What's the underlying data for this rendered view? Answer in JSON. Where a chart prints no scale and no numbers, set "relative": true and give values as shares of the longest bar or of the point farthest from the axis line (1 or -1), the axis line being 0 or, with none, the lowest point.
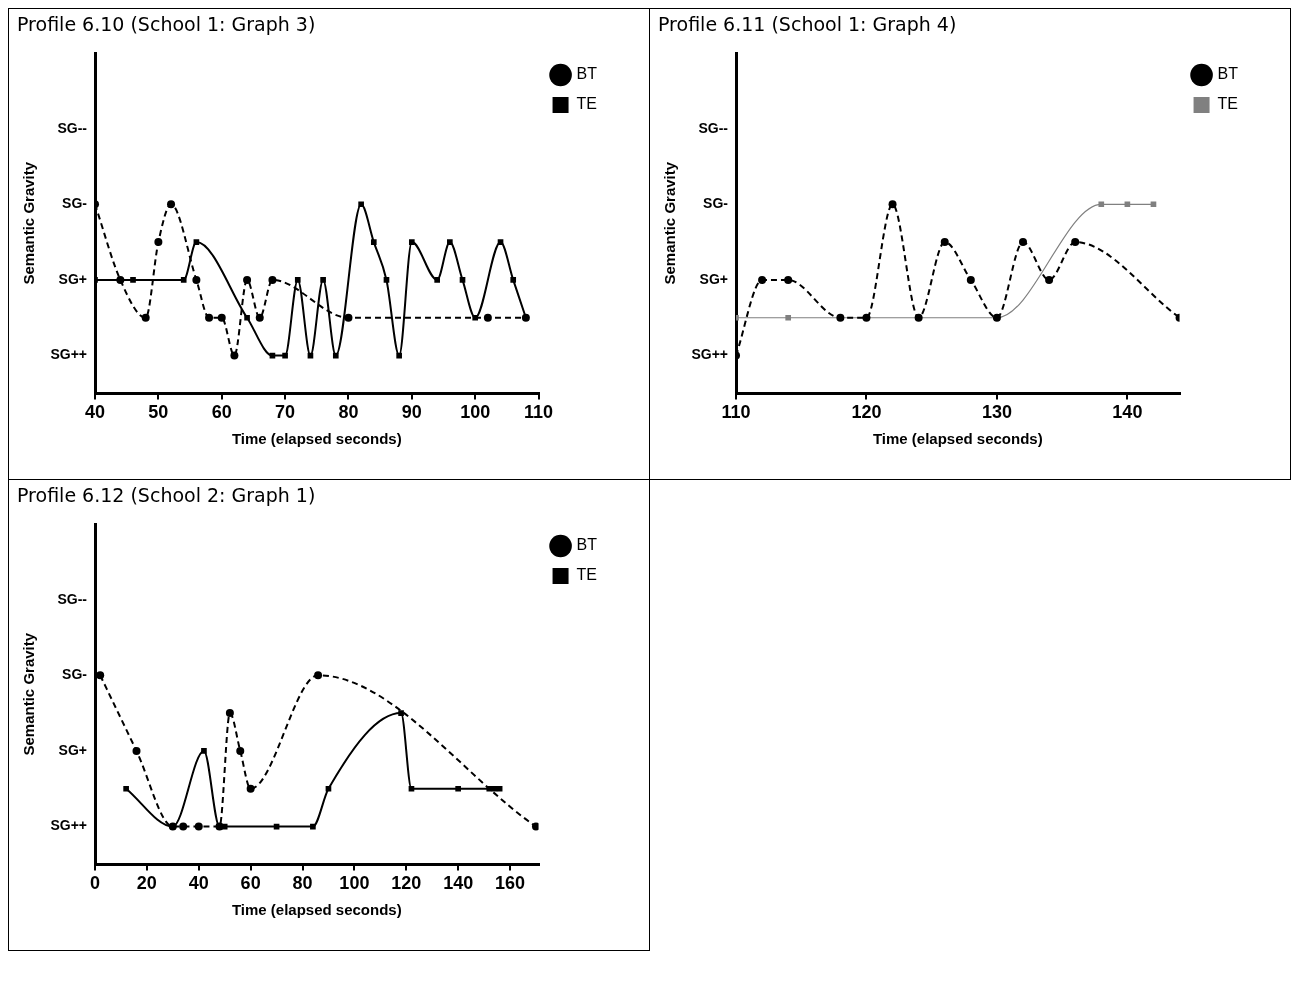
{
  "chart_data": [
    {
      "type": "line",
      "title": "Profile 6.10 (School 1: Graph 3)",
      "xlabel": "Time (elapsed seconds)",
      "ylabel": "Semantic Gravity",
      "xlim": [
        40,
        110
      ],
      "xticks": [
        40,
        50,
        60,
        70,
        80,
        90,
        100,
        110
      ],
      "relative": true,
      "legend": "top right",
      "annotations": [
        "SG++",
        "SG+",
        "SG-",
        "SG--"
      ],
      "series": [
        {
          "name": "BT",
          "color": "#000000",
          "line_style": "dashed",
          "marker": "circle",
          "x": [
            40,
            44,
            48,
            50,
            52,
            56,
            58,
            60,
            62,
            64,
            66,
            68,
            80,
            102,
            108
          ],
          "values": [
            1,
            0.6,
            0.4,
            0.8,
            1,
            0.6,
            0.4,
            0.4,
            0.2,
            0.6,
            0.4,
            0.6,
            0.4,
            0.4,
            0.4
          ]
        },
        {
          "name": "TE",
          "color": "#000000",
          "line_style": "solid",
          "marker": "square",
          "x": [
            40,
            46,
            54,
            56,
            64,
            68,
            70,
            72,
            74,
            76,
            78,
            82,
            84,
            86,
            88,
            90,
            94,
            96,
            98,
            100,
            104,
            106,
            108
          ],
          "values": [
            0.6,
            0.6,
            0.6,
            0.8,
            0.4,
            0.2,
            0.2,
            0.6,
            0.2,
            0.6,
            0.2,
            1,
            0.8,
            0.6,
            0.2,
            0.8,
            0.6,
            0.8,
            0.6,
            0.4,
            0.8,
            0.6,
            0.4
          ]
        }
      ]
    },
    {
      "type": "line",
      "title": "Profile 6.11 (School 1: Graph 4)",
      "xlabel": "Time (elapsed seconds)",
      "ylabel": "Semantic Gravity",
      "xlim": [
        110,
        144
      ],
      "xticks": [
        110,
        120,
        130,
        140
      ],
      "relative": true,
      "legend": "top right",
      "annotations": [
        "SG++",
        "SG+",
        "SG-",
        "SG--"
      ],
      "series": [
        {
          "name": "BT",
          "color": "#000000",
          "line_style": "dashed",
          "marker": "circle",
          "x": [
            110,
            112,
            114,
            118,
            120,
            122,
            124,
            126,
            128,
            130,
            132,
            134,
            136,
            144
          ],
          "values": [
            0.2,
            0.6,
            0.6,
            0.4,
            0.4,
            1,
            0.4,
            0.8,
            0.6,
            0.4,
            0.8,
            0.6,
            0.8,
            0.4
          ]
        },
        {
          "name": "TE",
          "color": "#808080",
          "line_style": "solid",
          "marker": "square",
          "x": [
            110,
            114,
            130,
            138,
            140,
            142
          ],
          "values": [
            0.4,
            0.4,
            0.4,
            1,
            1,
            1
          ]
        }
      ]
    },
    {
      "type": "line",
      "title": "Profile 6.12 (School 2: Graph 1)",
      "xlabel": "Time (elapsed seconds)",
      "ylabel": "Semantic Gravity",
      "xlim": [
        0,
        171
      ],
      "xticks": [
        0,
        20,
        40,
        60,
        80,
        100,
        120,
        140,
        160
      ],
      "relative": true,
      "legend": "top right",
      "annotations": [
        "SG++",
        "SG+",
        "SG-",
        "SG--"
      ],
      "series": [
        {
          "name": "BT",
          "color": "#000000",
          "line_style": "dashed",
          "marker": "circle",
          "x": [
            2,
            16,
            30,
            34,
            40,
            48,
            52,
            56,
            60,
            86,
            170
          ],
          "values": [
            1,
            0.6,
            0.2,
            0.2,
            0.2,
            0.2,
            0.8,
            0.6,
            0.4,
            1,
            0.2
          ]
        },
        {
          "name": "TE",
          "color": "#000000",
          "line_style": "solid",
          "marker": "square",
          "x": [
            12,
            30,
            42,
            48,
            50,
            70,
            84,
            90,
            118,
            122,
            140,
            152,
            154,
            156
          ],
          "values": [
            0.4,
            0.2,
            0.6,
            0.2,
            0.2,
            0.2,
            0.2,
            0.4,
            0.8,
            0.4,
            0.4,
            0.4,
            0.4,
            0.4
          ]
        }
      ]
    }
  ]
}
